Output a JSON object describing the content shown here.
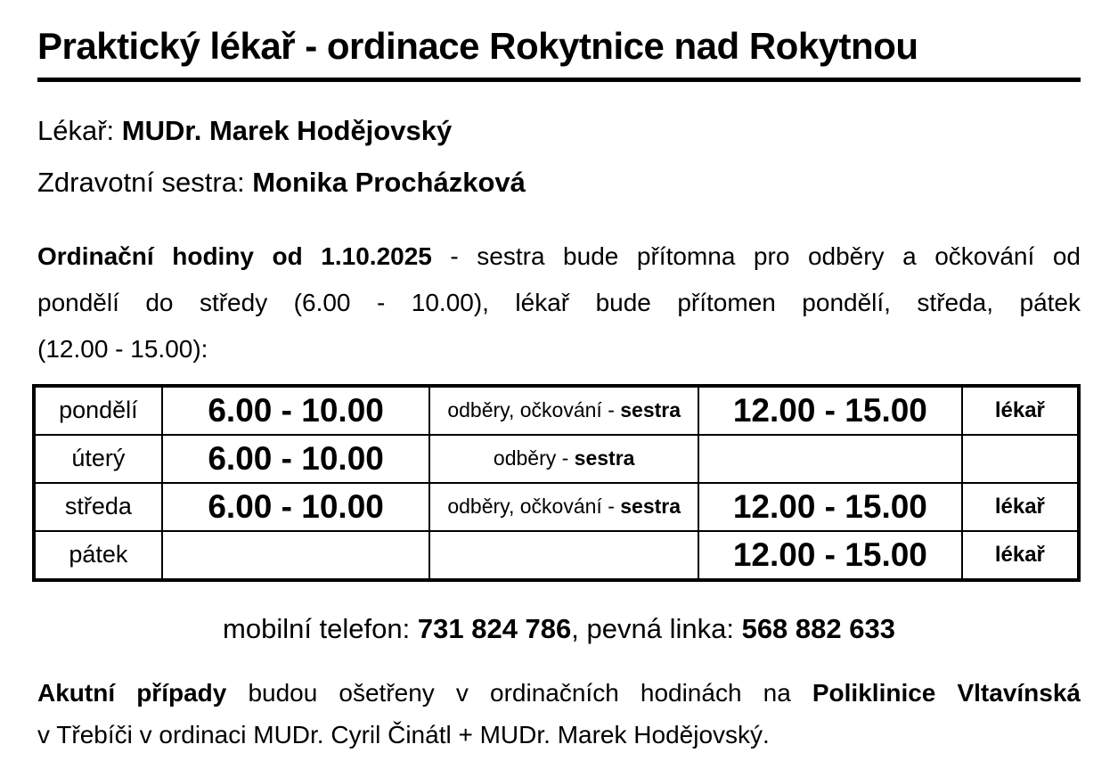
{
  "title": "Praktický lékař - ordinace Rokytnice nad Rokytnou",
  "staff": {
    "doctor_label": "Lékař: ",
    "doctor_name": "MUDr. Marek Hodějovský",
    "nurse_label": "Zdravotní sestra: ",
    "nurse_name": "Monika Procházková"
  },
  "intro": {
    "line1_bold": "Ordinační hodiny od 1.10.2025",
    "line1_rest": " - sestra bude přítomna pro odběry a očkování od",
    "line2": "pondělí do středy (6.00 - 10.00), lékař bude přítomen pondělí, středa, pátek",
    "line3": "(12.00 - 15.00):"
  },
  "schedule_table": {
    "rows": [
      {
        "day": "pondělí",
        "morning": "6.00 - 10.00",
        "note": "odběry, očkování - ",
        "note_bold": "sestra",
        "afternoon": "12.00 - 15.00",
        "staff": "lékař"
      },
      {
        "day": "úterý",
        "morning": "6.00 - 10.00",
        "note": "odběry - ",
        "note_bold": "sestra",
        "afternoon": "",
        "staff": ""
      },
      {
        "day": "středa",
        "morning": "6.00 - 10.00",
        "note": "odběry, očkování - ",
        "note_bold": "sestra",
        "afternoon": "12.00 - 15.00",
        "staff": "lékař"
      },
      {
        "day": "pátek",
        "morning": "",
        "note": "",
        "note_bold": "",
        "afternoon": "12.00 - 15.00",
        "staff": "lékař"
      }
    ]
  },
  "phones": {
    "mobile_label": "mobilní telefon: ",
    "mobile_number": "731 824 786",
    "separator": ", pevná linka: ",
    "landline_number": "568 882 633"
  },
  "footer": {
    "line1_bold1": "Akutní případy",
    "line1_text1": " budou ošetřeny v ordinačních hodinách na ",
    "line1_bold2": "Poliklinice Vltavínská",
    "line2": "v Třebíči v ordinaci MUDr. Cyril Činátl + MUDr. Marek Hodějovský."
  }
}
